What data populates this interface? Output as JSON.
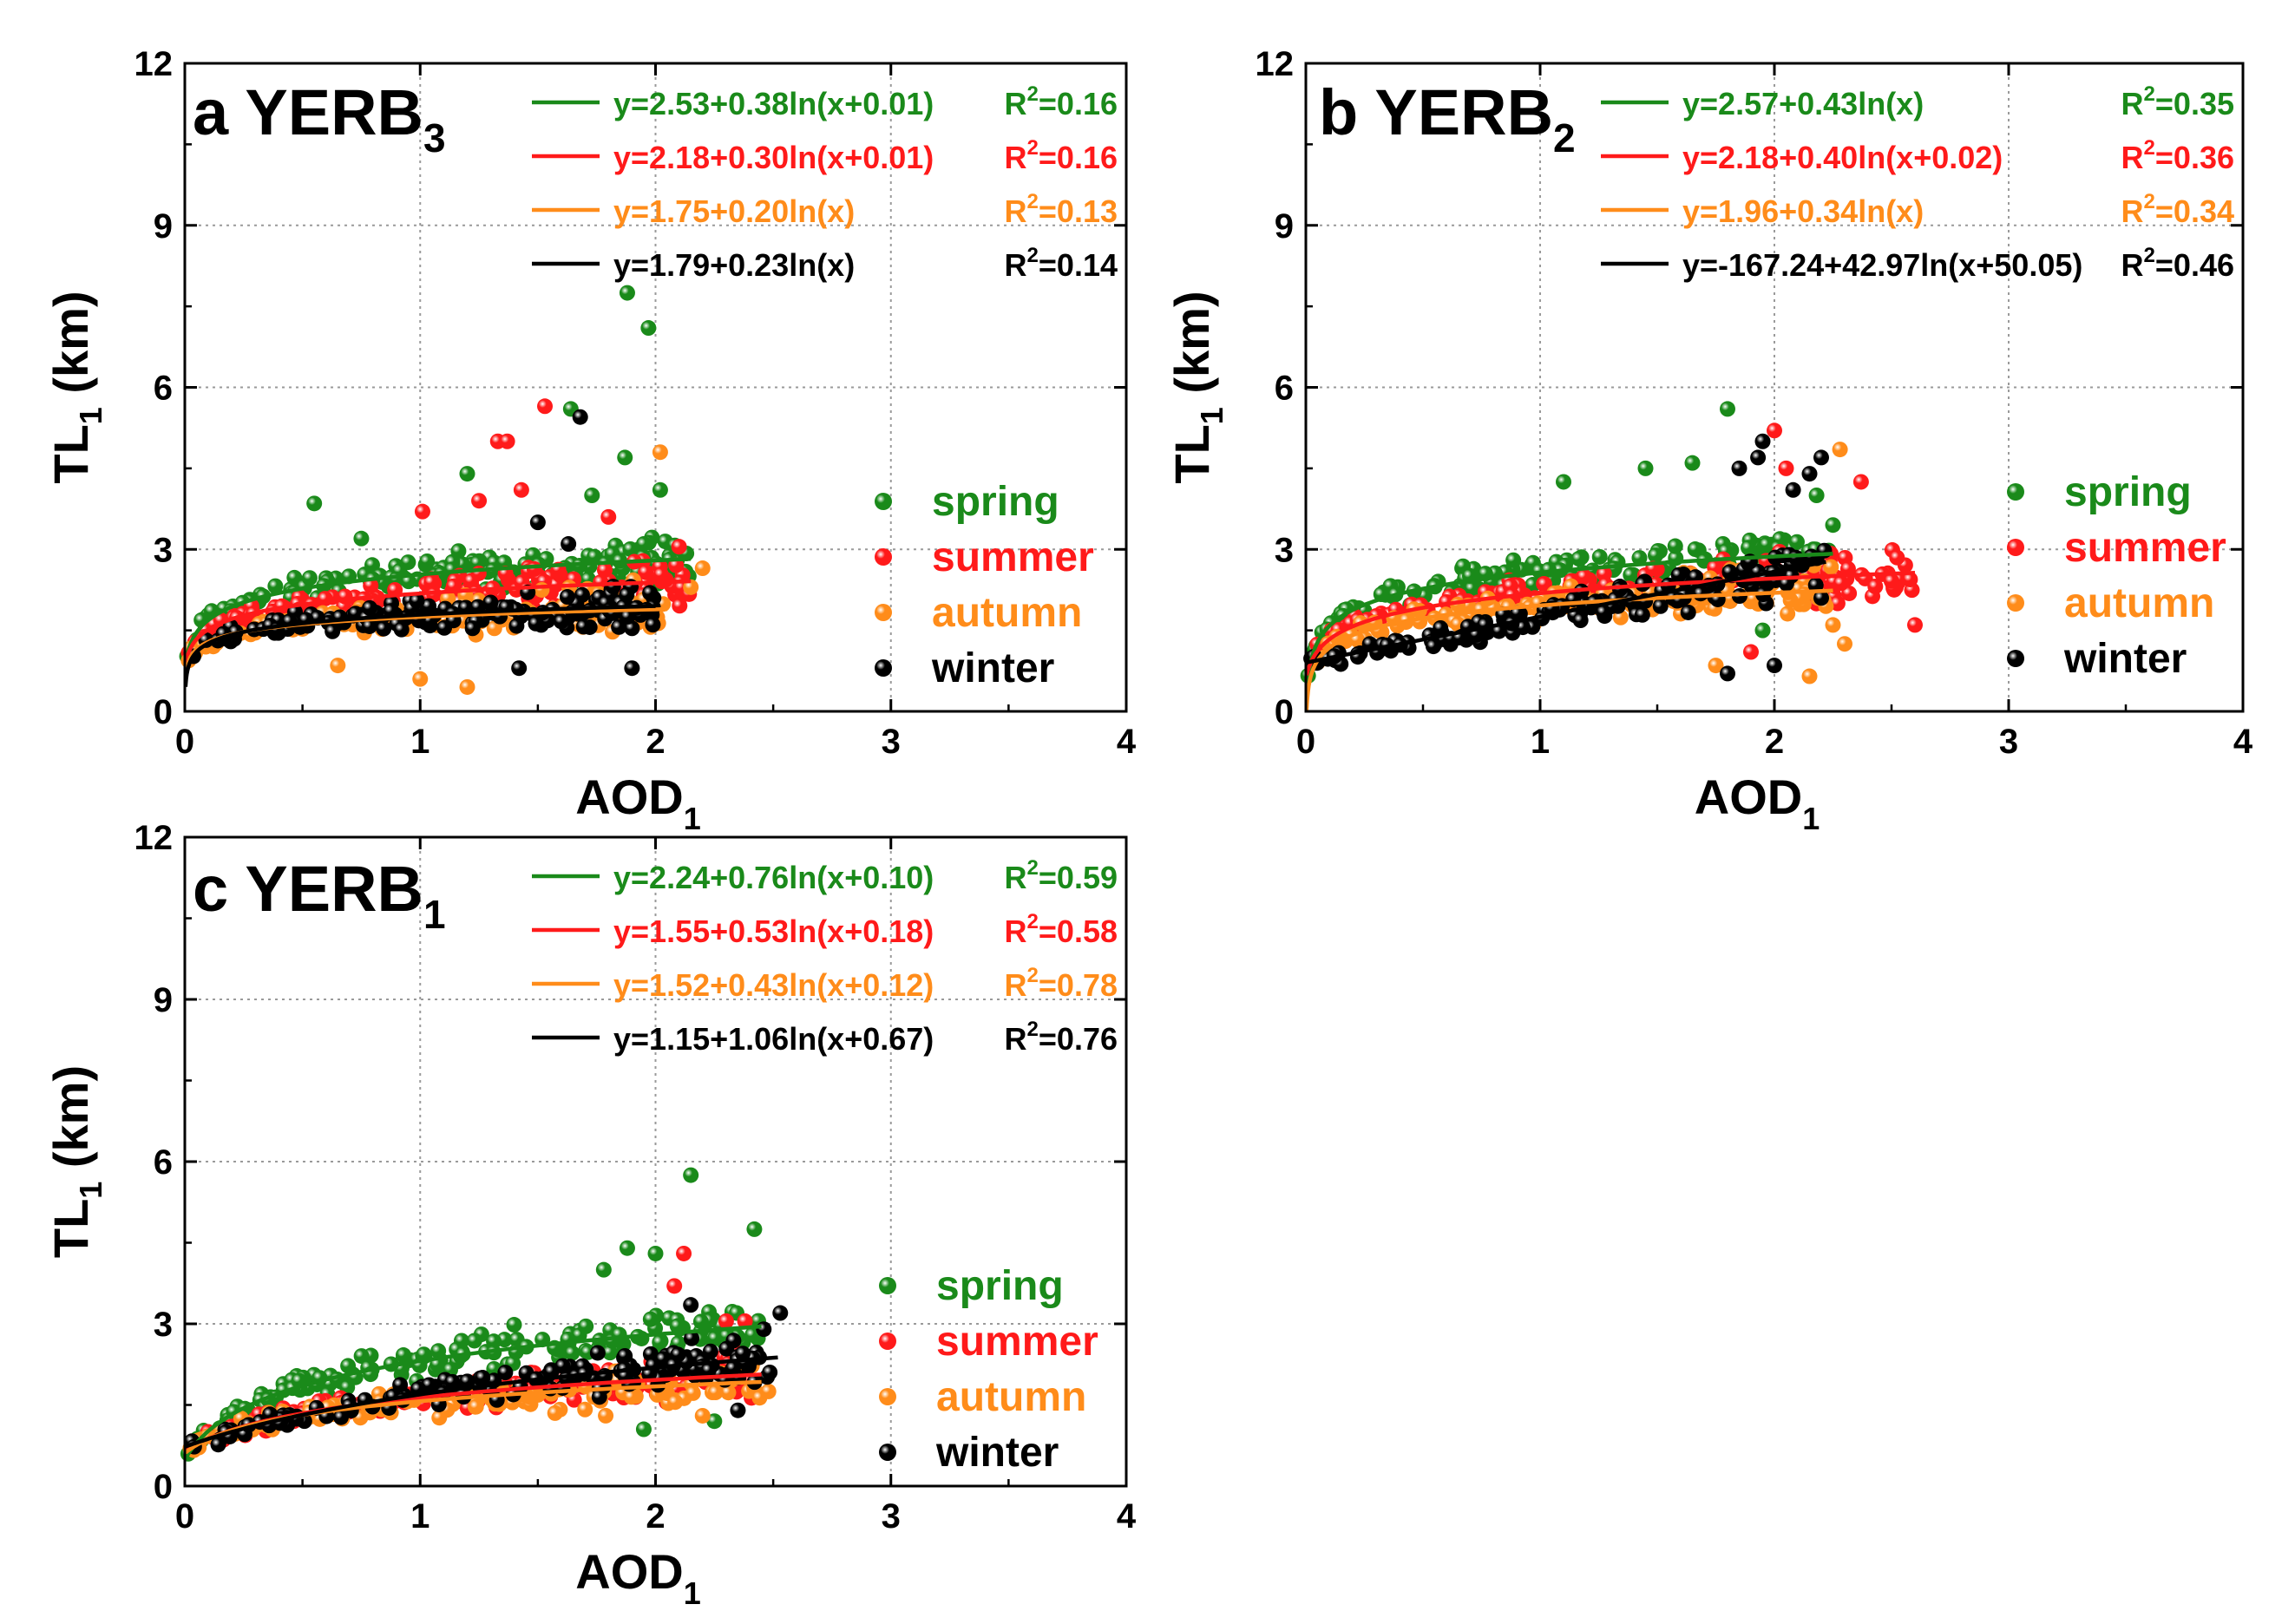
{
  "figure": {
    "season_colors": {
      "spring": "#1a8a1a",
      "summer": "#ff1a1a",
      "autumn": "#ff8c1a",
      "winter": "#000000"
    }
  },
  "chart_data": [
    {
      "type": "scatter",
      "panel": "a",
      "site": "YERB",
      "site_sub": "3",
      "xlabel": "AOD",
      "xlabel_sub": "1",
      "ylabel": "TL",
      "ylabel_sub": "1",
      "ylabel_unit": "(km)",
      "xlim": [
        0,
        4
      ],
      "ylim": [
        0,
        12
      ],
      "xticks": [
        "0",
        "1",
        "2",
        "3",
        "4"
      ],
      "yticks": [
        "0",
        "3",
        "6",
        "9",
        "12"
      ],
      "grid": true,
      "legend_position": "right",
      "series": [
        {
          "name": "spring",
          "color": "#1a8a1a",
          "a": 2.53,
          "b": 0.38,
          "c": 0.01,
          "r2": "0.16",
          "equation": "y=2.53+0.38ln(x+0.01)",
          "r2_text": "R",
          "r2_value": "=0.16",
          "xmax": 2.15,
          "outliers": [
            [
              1.88,
              7.75
            ],
            [
              1.97,
              7.1
            ],
            [
              1.64,
              5.6
            ],
            [
              2.02,
              4.1
            ],
            [
              1.87,
              4.7
            ],
            [
              0.55,
              3.85
            ],
            [
              1.2,
              4.4
            ],
            [
              1.73,
              4.0
            ],
            [
              0.75,
              3.2
            ],
            [
              1.95,
              3.1
            ]
          ]
        },
        {
          "name": "summer",
          "color": "#ff1a1a",
          "a": 2.18,
          "b": 0.3,
          "c": 0.01,
          "r2": "0.16",
          "equation": "y=2.18+0.30ln(x+0.01)",
          "r2_text": "R",
          "r2_value": "=0.16",
          "xmax": 2.15,
          "outliers": [
            [
              1.53,
              5.65
            ],
            [
              1.33,
              5.0
            ],
            [
              1.37,
              5.0
            ],
            [
              1.01,
              3.7
            ],
            [
              1.25,
              3.9
            ],
            [
              1.43,
              4.1
            ],
            [
              2.1,
              3.05
            ],
            [
              1.8,
              3.6
            ]
          ]
        },
        {
          "name": "autumn",
          "color": "#ff8c1a",
          "a": 1.75,
          "b": 0.2,
          "c": 0.0,
          "r2": "0.13",
          "equation": "y=1.75+0.20ln(x)",
          "r2_text": "R",
          "r2_value": "=0.13",
          "xmax": 2.05,
          "outliers": [
            [
              2.02,
              4.8
            ],
            [
              2.2,
              2.65
            ],
            [
              2.15,
              2.3
            ],
            [
              1.2,
              0.45
            ],
            [
              0.65,
              0.85
            ],
            [
              1.0,
              0.6
            ]
          ]
        },
        {
          "name": "winter",
          "color": "#000000",
          "a": 1.79,
          "b": 0.23,
          "c": 0.0,
          "r2": "0.14",
          "equation": "y=1.79+0.23ln(x)",
          "r2_text": "R",
          "r2_value": "=0.14",
          "xmax": 2.0,
          "outliers": [
            [
              1.68,
              5.45
            ],
            [
              1.5,
              3.5
            ],
            [
              1.9,
              0.8
            ],
            [
              1.42,
              0.8
            ],
            [
              1.63,
              3.1
            ]
          ]
        }
      ]
    },
    {
      "type": "scatter",
      "panel": "b",
      "site": "YERB",
      "site_sub": "2",
      "xlabel": "AOD",
      "xlabel_sub": "1",
      "ylabel": "TL",
      "ylabel_sub": "1",
      "ylabel_unit": "(km)",
      "xlim": [
        0,
        4
      ],
      "ylim": [
        0,
        12
      ],
      "xticks": [
        "0",
        "1",
        "2",
        "3",
        "4"
      ],
      "yticks": [
        "0",
        "3",
        "6",
        "9",
        "12"
      ],
      "grid": true,
      "legend_position": "right",
      "series": [
        {
          "name": "spring",
          "color": "#1a8a1a",
          "a": 2.57,
          "b": 0.43,
          "c": 0.0,
          "r2": "0.35",
          "equation": "y=2.57+0.43ln(x)",
          "r2_text": "R",
          "r2_value": "=0.35",
          "xmax": 2.25,
          "outliers": [
            [
              1.8,
              5.6
            ],
            [
              1.1,
              4.25
            ],
            [
              1.45,
              4.5
            ],
            [
              1.65,
              4.6
            ],
            [
              2.18,
              4.0
            ],
            [
              2.25,
              3.45
            ],
            [
              1.95,
              1.5
            ]
          ]
        },
        {
          "name": "summer",
          "color": "#ff1a1a",
          "a": 2.18,
          "b": 0.4,
          "c": 0.02,
          "r2": "0.36",
          "equation": "y=2.18+0.40ln(x+0.02)",
          "r2_text": "R",
          "r2_value": "=0.36",
          "xmax": 2.6,
          "outliers": [
            [
              2.0,
              5.2
            ],
            [
              2.05,
              4.5
            ],
            [
              2.37,
              4.25
            ],
            [
              2.6,
              1.6
            ],
            [
              2.27,
              2.0
            ],
            [
              1.9,
              1.1
            ]
          ]
        },
        {
          "name": "autumn",
          "color": "#ff8c1a",
          "a": 1.96,
          "b": 0.34,
          "c": 0.0,
          "r2": "0.34",
          "equation": "y=1.96+0.34ln(x)",
          "r2_text": "R",
          "r2_value": "=0.34",
          "xmax": 2.25,
          "outliers": [
            [
              2.28,
              4.85
            ],
            [
              2.25,
              1.6
            ],
            [
              2.15,
              0.65
            ],
            [
              2.3,
              1.25
            ],
            [
              1.75,
              0.85
            ]
          ]
        },
        {
          "name": "winter",
          "color": "#000000",
          "a": -167.24,
          "b": 42.97,
          "c": 50.05,
          "r2": "0.46",
          "equation": "y=-167.24+42.97ln(x+50.05)",
          "r2_text": "R",
          "r2_value": "=0.46",
          "xmax": 2.22,
          "outliers": [
            [
              1.95,
              5.0
            ],
            [
              2.2,
              4.7
            ],
            [
              2.15,
              4.4
            ],
            [
              2.08,
              4.1
            ],
            [
              1.85,
              4.5
            ],
            [
              1.8,
              0.7
            ],
            [
              2.0,
              0.85
            ],
            [
              1.93,
              4.7
            ],
            [
              2.2,
              2.1
            ]
          ]
        }
      ]
    },
    {
      "type": "scatter",
      "panel": "c",
      "site": "YERB",
      "site_sub": "1",
      "xlabel": "AOD",
      "xlabel_sub": "1",
      "ylabel": "TL",
      "ylabel_sub": "1",
      "ylabel_unit": "(km)",
      "xlim": [
        0,
        4
      ],
      "ylim": [
        0,
        12
      ],
      "xticks": [
        "0",
        "1",
        "2",
        "3",
        "4"
      ],
      "yticks": [
        "0",
        "3",
        "6",
        "9",
        "12"
      ],
      "grid": true,
      "legend_position": "right",
      "series": [
        {
          "name": "spring",
          "color": "#1a8a1a",
          "a": 2.24,
          "b": 0.76,
          "c": 0.1,
          "r2": "0.59",
          "equation": "y=2.24+0.76ln(x+0.10)",
          "r2_text": "R",
          "r2_value": "=0.59",
          "xmax": 2.45,
          "outliers": [
            [
              2.15,
              5.75
            ],
            [
              2.42,
              4.75
            ],
            [
              1.88,
              4.4
            ],
            [
              1.78,
              4.0
            ],
            [
              2.0,
              4.3
            ],
            [
              1.95,
              1.05
            ],
            [
              2.25,
              1.2
            ]
          ]
        },
        {
          "name": "summer",
          "color": "#ff1a1a",
          "a": 1.55,
          "b": 0.53,
          "c": 0.18,
          "r2": "0.58",
          "equation": "y=1.55+0.53ln(x+0.18)",
          "r2_text": "R",
          "r2_value": "=0.58",
          "xmax": 2.45,
          "outliers": [
            [
              2.12,
              4.3
            ],
            [
              2.08,
              3.7
            ],
            [
              2.38,
              3.05
            ],
            [
              2.3,
              3.05
            ]
          ]
        },
        {
          "name": "autumn",
          "color": "#ff8c1a",
          "a": 1.52,
          "b": 0.43,
          "c": 0.12,
          "r2": "0.78",
          "equation": "y=1.52+0.43ln(x+0.12)",
          "r2_text": "R",
          "r2_value": "=0.78",
          "xmax": 2.45,
          "outliers": [
            [
              2.48,
              1.75
            ],
            [
              2.2,
              1.3
            ]
          ]
        },
        {
          "name": "winter",
          "color": "#000000",
          "a": 1.15,
          "b": 1.06,
          "c": 0.67,
          "r2": "0.76",
          "equation": "y=1.15+1.06ln(x+0.67)",
          "r2_text": "R",
          "r2_value": "=0.76",
          "xmax": 2.52,
          "outliers": [
            [
              2.53,
              3.2
            ],
            [
              2.46,
              2.9
            ],
            [
              2.15,
              3.35
            ],
            [
              2.35,
              1.4
            ]
          ]
        }
      ]
    }
  ]
}
